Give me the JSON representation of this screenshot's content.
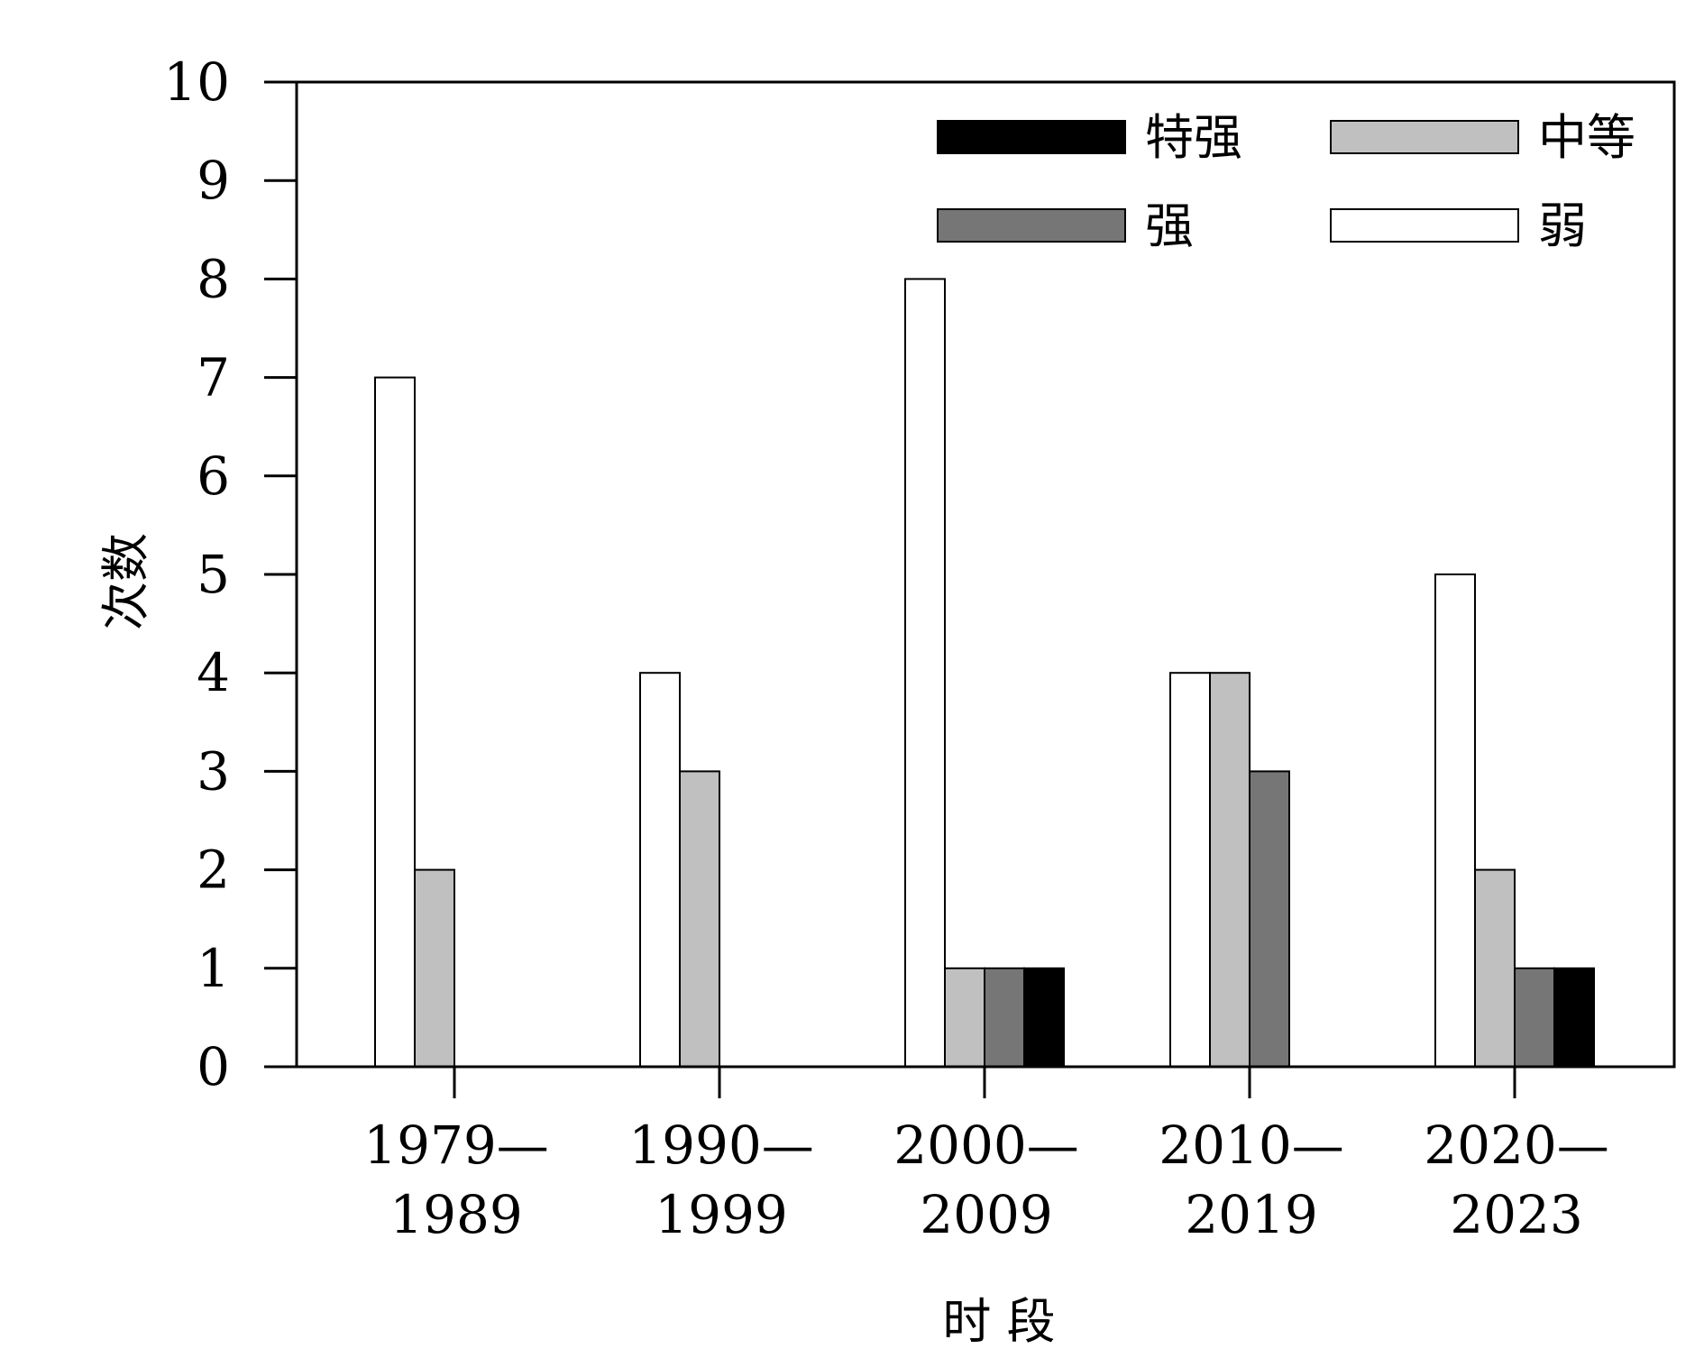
{
  "chart_data": {
    "type": "bar",
    "xlabel": "时 段",
    "ylabel": "次数",
    "ylim": [
      0,
      10
    ],
    "yticks": [
      0,
      1,
      2,
      3,
      4,
      5,
      6,
      7,
      8,
      9,
      10
    ],
    "grid": false,
    "legend_position": "top-right",
    "categories": [
      [
        "1979—",
        "1989"
      ],
      [
        "1990—",
        "1999"
      ],
      [
        "2000—",
        "2009"
      ],
      [
        "2010—",
        "2019"
      ],
      [
        "2020—",
        "2023"
      ]
    ],
    "series": [
      {
        "name": "弱",
        "color": "#ffffff",
        "values": [
          7,
          4,
          8,
          4,
          5
        ]
      },
      {
        "name": "中等",
        "color": "#c0c0c0",
        "values": [
          2,
          3,
          1,
          4,
          2
        ]
      },
      {
        "name": "强",
        "color": "#767676",
        "values": [
          0,
          0,
          1,
          3,
          1
        ]
      },
      {
        "name": "特强",
        "color": "#000000",
        "values": [
          0,
          0,
          1,
          0,
          1
        ]
      }
    ],
    "legend_order": [
      "特强",
      "中等",
      "强",
      "弱"
    ]
  }
}
